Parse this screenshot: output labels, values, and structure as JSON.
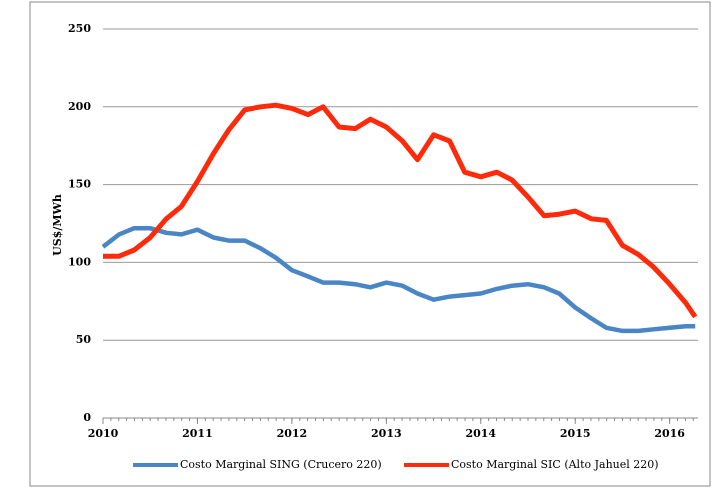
{
  "chart_data": {
    "type": "line",
    "y_label": "US$/MWh",
    "x": [
      2010,
      2010.17,
      2010.33,
      2010.5,
      2010.67,
      2010.83,
      2011,
      2011.17,
      2011.33,
      2011.5,
      2011.67,
      2011.83,
      2012,
      2012.17,
      2012.33,
      2012.5,
      2012.67,
      2012.83,
      2013,
      2013.17,
      2013.33,
      2013.5,
      2013.67,
      2013.83,
      2014,
      2014.17,
      2014.33,
      2014.5,
      2014.67,
      2014.83,
      2015,
      2015.17,
      2015.33,
      2015.5,
      2015.67,
      2015.83,
      2016,
      2016.17,
      2016.27
    ],
    "series": [
      {
        "name": "Costo Marginal SING (Crucero 220)",
        "color": "#4a86c5",
        "values": [
          110,
          118,
          122,
          122,
          119,
          118,
          121,
          116,
          114,
          114,
          109,
          103,
          95,
          91,
          87,
          87,
          86,
          84,
          87,
          85,
          80,
          76,
          78,
          79,
          80,
          83,
          85,
          86,
          84,
          80,
          71,
          64,
          58,
          56,
          56,
          57,
          58,
          59,
          59
        ]
      },
      {
        "name": "Costo Marginal SIC (Alto Jahuel 220)",
        "color": "#ff2a0a",
        "values": [
          104,
          104,
          108,
          116,
          128,
          136,
          152,
          170,
          185,
          198,
          200,
          201,
          199,
          195,
          200,
          187,
          186,
          192,
          187,
          178,
          166,
          182,
          178,
          158,
          155,
          158,
          153,
          142,
          130,
          131,
          133,
          128,
          127,
          111,
          105,
          97,
          86,
          74,
          65
        ]
      }
    ],
    "xlim": [
      2010,
      2016.3
    ],
    "xticks": [
      2010,
      2011,
      2012,
      2013,
      2014,
      2015,
      2016
    ],
    "ylim": [
      0,
      250
    ],
    "yticks": [
      0,
      50,
      100,
      150,
      200,
      250
    ],
    "grid": true
  }
}
